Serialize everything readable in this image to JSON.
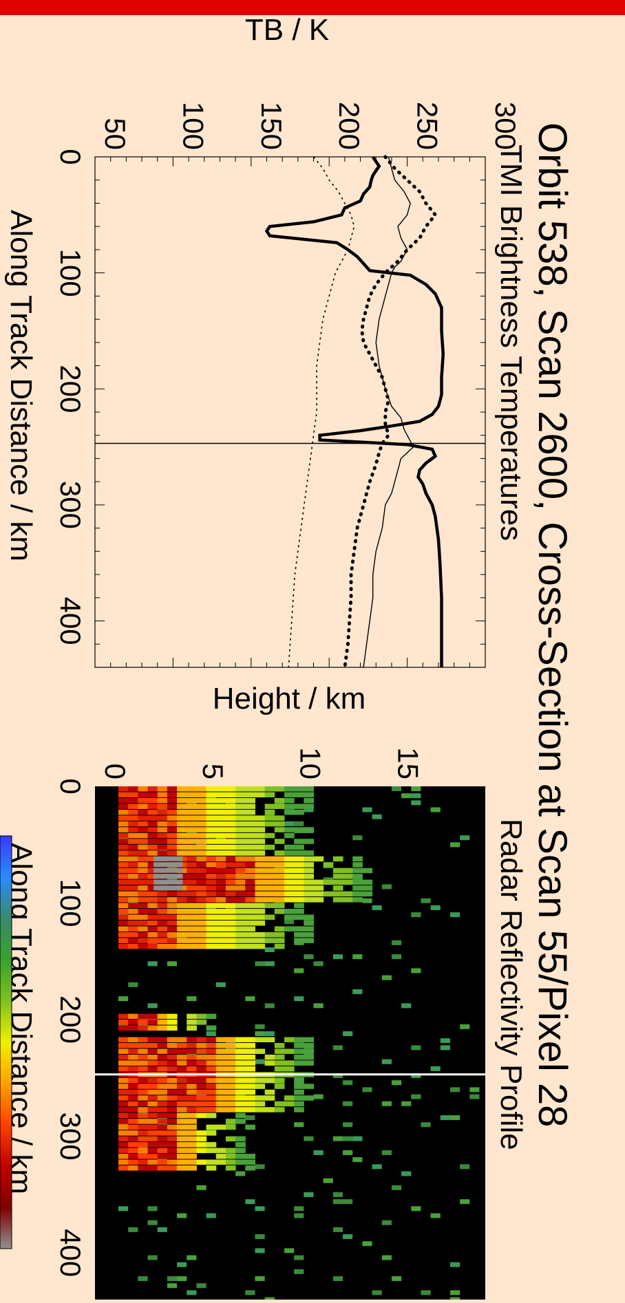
{
  "page": {
    "background": "#ffe6cf",
    "bar_color": "#e00000",
    "title": "Orbit 538, Scan 2600,  Cross-Section at Scan 55/Pixel 28"
  },
  "chart_data": [
    {
      "type": "line",
      "title": "TMI Brightness Temperatures",
      "xlabel": "Along Track Distance / km",
      "ylabel": "TB / K",
      "xlim": [
        0,
        440
      ],
      "ylim": [
        50,
        300
      ],
      "xticks": [
        0,
        100,
        200,
        300,
        400
      ],
      "yticks": [
        50,
        100,
        150,
        200,
        250,
        300
      ],
      "marker_x": 247,
      "series": [
        {
          "style": "thick-solid",
          "x": [
            0,
            4,
            8,
            12,
            16,
            20,
            26,
            32,
            38,
            44,
            50,
            56,
            60,
            64,
            68,
            74,
            80,
            86,
            92,
            98,
            102,
            110,
            118,
            130,
            150,
            170,
            190,
            205,
            215,
            222,
            228,
            232,
            236,
            240,
            244,
            248,
            252,
            258,
            264,
            270,
            276,
            282,
            290,
            300,
            310,
            330,
            350,
            380,
            410,
            440
          ],
          "y": [
            228,
            230,
            232,
            230,
            228,
            227,
            226,
            222,
            220,
            210,
            208,
            190,
            162,
            160,
            162,
            205,
            212,
            218,
            222,
            226,
            252,
            262,
            268,
            272,
            272,
            273,
            272,
            272,
            270,
            266,
            258,
            240,
            220,
            194,
            194,
            250,
            266,
            268,
            262,
            258,
            257,
            260,
            262,
            266,
            268,
            270,
            271,
            272,
            272,
            272
          ]
        },
        {
          "style": "thin-solid",
          "x": [
            0,
            10,
            20,
            30,
            40,
            50,
            60,
            70,
            80,
            90,
            95,
            100,
            110,
            120,
            140,
            160,
            180,
            200,
            215,
            225,
            235,
            240,
            245,
            250,
            255,
            260,
            270,
            280,
            290,
            300,
            320,
            340,
            360,
            380,
            400,
            420,
            440
          ],
          "y": [
            238,
            240,
            242,
            248,
            252,
            250,
            244,
            246,
            250,
            246,
            242,
            240,
            238,
            236,
            232,
            230,
            232,
            236,
            240,
            246,
            248,
            250,
            252,
            254,
            250,
            246,
            244,
            242,
            240,
            236,
            234,
            230,
            228,
            228,
            226,
            224,
            222
          ]
        },
        {
          "style": "thick-dotted",
          "x": [
            0,
            10,
            20,
            30,
            40,
            50,
            60,
            70,
            80,
            90,
            100,
            110,
            120,
            130,
            140,
            150,
            160,
            170,
            180,
            190,
            200,
            210,
            220,
            230,
            240,
            247,
            255,
            265,
            280,
            300,
            320,
            340,
            360,
            380,
            400,
            420,
            440
          ],
          "y": [
            236,
            242,
            250,
            258,
            262,
            268,
            262,
            258,
            250,
            244,
            236,
            230,
            226,
            224,
            222,
            221,
            222,
            226,
            230,
            234,
            236,
            238,
            236,
            236,
            238,
            234,
            232,
            230,
            226,
            222,
            218,
            216,
            214,
            214,
            213,
            212,
            210
          ]
        },
        {
          "style": "thin-dotted",
          "x": [
            0,
            10,
            20,
            30,
            40,
            50,
            60,
            70,
            80,
            90,
            100,
            120,
            140,
            160,
            180,
            200,
            220,
            240,
            260,
            280,
            300,
            320,
            340,
            360,
            380,
            400,
            420,
            440
          ],
          "y": [
            190,
            196,
            200,
            206,
            210,
            214,
            216,
            214,
            212,
            208,
            204,
            200,
            196,
            194,
            192,
            192,
            192,
            190,
            188,
            186,
            184,
            182,
            180,
            178,
            177,
            176,
            175,
            174
          ]
        }
      ]
    },
    {
      "type": "heatmap",
      "title": "Radar Reflectivity Profile",
      "xlabel": "Along Track Distance / km",
      "ylabel": "Height / km",
      "xlim": [
        0,
        440
      ],
      "ylim": [
        0,
        20
      ],
      "xticks": [
        0,
        100,
        200,
        300,
        400
      ],
      "yticks": [
        0,
        5,
        10,
        15
      ],
      "marker_x": 247,
      "colorbar": [
        "#3a3aff",
        "#2a8aff",
        "#3a8a6a",
        "#3aa030",
        "#80c020",
        "#f0f000",
        "#ffa000",
        "#ff4000",
        "#c00000",
        "#800000",
        "#909090"
      ],
      "storm_cells": [
        {
          "x0": 0,
          "x1": 60,
          "top": 11,
          "core_top": 4
        },
        {
          "x0": 60,
          "x1": 100,
          "top": 14,
          "core_top": 8
        },
        {
          "x0": 100,
          "x1": 140,
          "top": 11,
          "core_top": 4
        },
        {
          "x0": 195,
          "x1": 210,
          "top": 6,
          "core_top": 3
        },
        {
          "x0": 215,
          "x1": 280,
          "top": 11,
          "core_top": 6
        },
        {
          "x0": 280,
          "x1": 330,
          "top": 8,
          "core_top": 4
        }
      ]
    }
  ]
}
